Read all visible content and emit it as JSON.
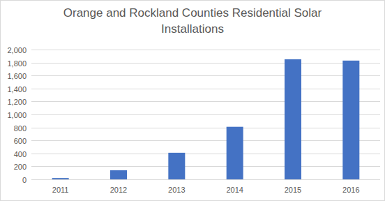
{
  "chart_data": {
    "type": "bar",
    "title": "Orange and Rockland Counties Residential Solar Installations",
    "categories": [
      "2011",
      "2012",
      "2013",
      "2014",
      "2015",
      "2016"
    ],
    "values": [
      20,
      140,
      410,
      810,
      1850,
      1830
    ],
    "color": "#4472c4",
    "ylim": [
      0,
      2000
    ],
    "yticks": [
      0,
      200,
      400,
      600,
      800,
      {
        "value": 1000,
        "label": "1,000"
      },
      {
        "value": 1200,
        "label": "1,200"
      },
      {
        "value": 1400,
        "label": "1,400"
      },
      {
        "value": 1600,
        "label": "1,600"
      },
      {
        "value": 1800,
        "label": "1,800"
      },
      {
        "value": 2000,
        "label": "2,000"
      }
    ],
    "grid": true
  }
}
